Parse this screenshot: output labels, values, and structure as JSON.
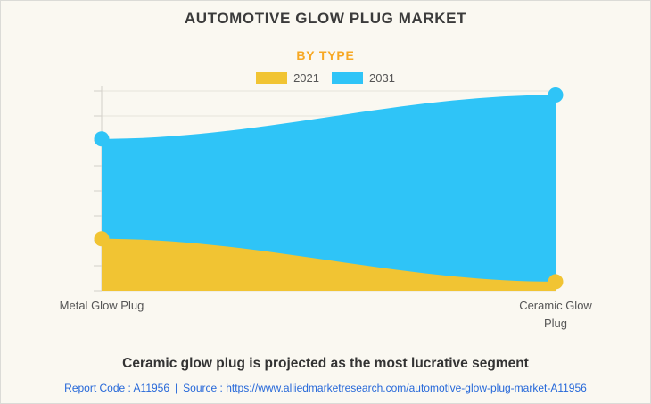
{
  "page": {
    "title": "AUTOMOTIVE GLOW PLUG MARKET",
    "subtitle": "BY TYPE",
    "footer_headline": "Ceramic glow plug is projected as the most lucrative segment",
    "report_code": "Report Code : A11956",
    "separator": "|",
    "source_prefix": "Source :",
    "source_url": "https://www.alliedmarketresearch.com/automotive-glow-plug-market-A11956"
  },
  "chart_data": {
    "type": "area",
    "categories": [
      "Metal Glow Plug",
      "Ceramic Glow Plug"
    ],
    "series": [
      {
        "name": "2021",
        "color": "#F1C433",
        "values": [
          26,
          4.5
        ]
      },
      {
        "name": "2031",
        "color": "#2FC4F7",
        "values": [
          76,
          98
        ]
      }
    ],
    "title": "AUTOMOTIVE GLOW PLUG MARKET",
    "subtitle": "BY TYPE",
    "xlabel": "",
    "ylabel": "",
    "ylim": [
      0,
      100
    ],
    "y_units": "relative market size (y-axis shown without numeric labels)",
    "grid": true,
    "gridline_count": 9,
    "legend_position": "top-center",
    "marker": "circle"
  },
  "colors": {
    "background": "#FAF8F1",
    "title_text": "#3B3B3B",
    "accent_orange": "#F7A823",
    "series_2021": "#F1C433",
    "series_2031": "#2FC4F7",
    "grid": "#E6E3DC",
    "axis": "#D3D0C9",
    "link_blue": "#2668D9"
  }
}
